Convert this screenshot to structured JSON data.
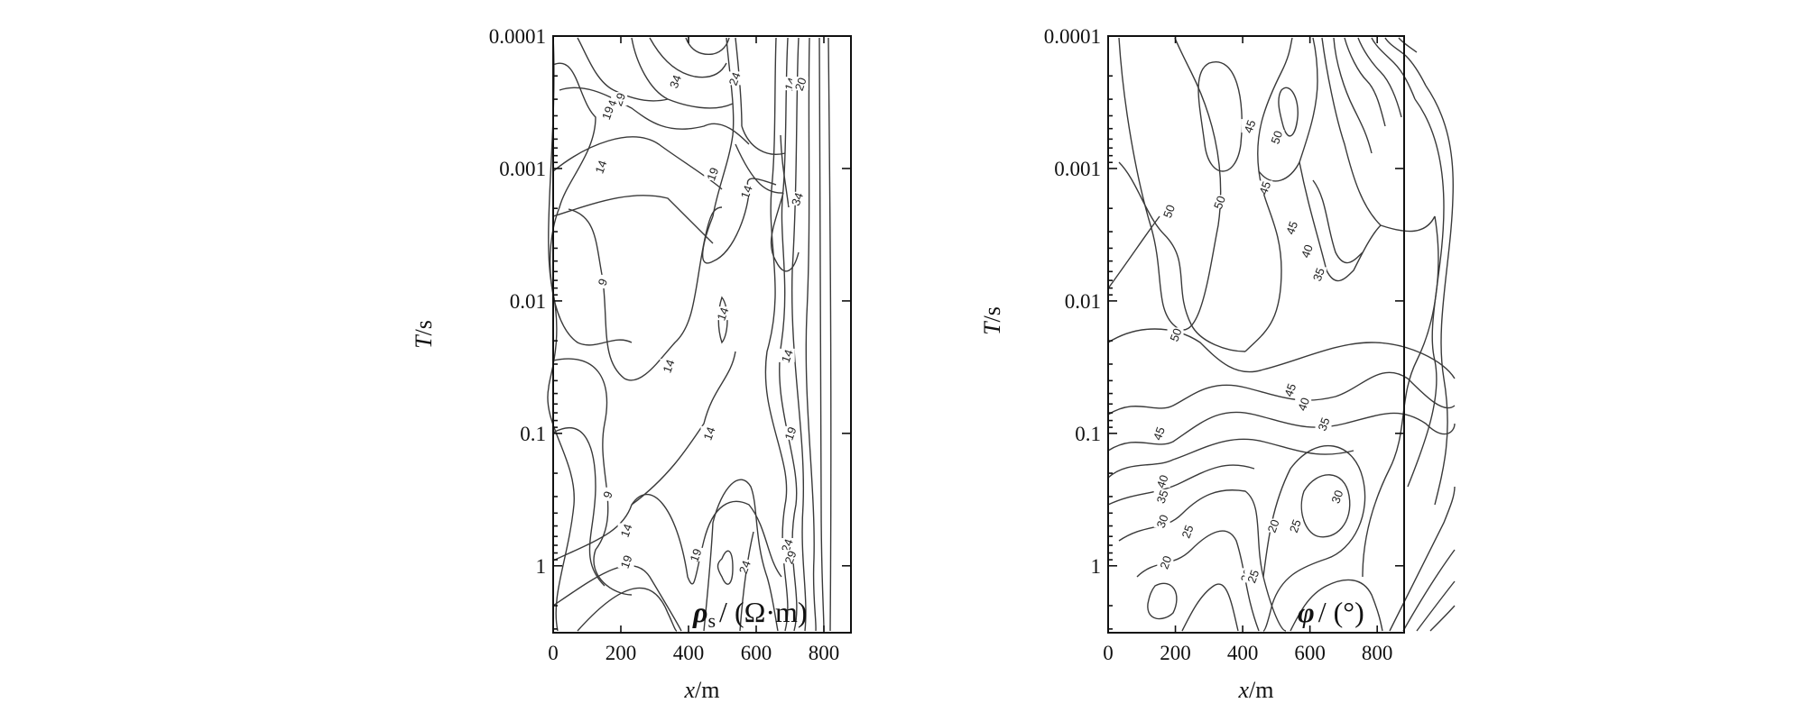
{
  "chart_data": [
    {
      "type": "contour",
      "panel": "left",
      "quantity": "apparent resistivity",
      "unit_label": {
        "symbol": "ρ",
        "sub": "s",
        "rest": "/ (Ω·m)"
      },
      "xlabel": {
        "var": "x",
        "rest": "/m"
      },
      "ylabel": {
        "var": "T",
        "rest": "/s"
      },
      "x_ticks": [
        "0",
        "200",
        "400",
        "600",
        "800"
      ],
      "x_tick_values": [
        0,
        200,
        400,
        600,
        800
      ],
      "xlim": [
        0,
        880
      ],
      "y_scale": "log",
      "y_inverted": true,
      "y_ticks": [
        "0.0001",
        "0.001",
        "0.01",
        "0.1",
        "1"
      ],
      "y_tick_values": [
        0.0001,
        0.001,
        0.01,
        0.1,
        1
      ],
      "ylim": [
        0.0001,
        3.2
      ],
      "contour_labels": [
        {
          "text": "34",
          "x": 360,
          "T": 0.00022
        },
        {
          "text": "29",
          "x": 195,
          "T": 0.0003
        },
        {
          "text": "24",
          "x": 170,
          "T": 0.00034
        },
        {
          "text": "19",
          "x": 160,
          "T": 0.00038
        },
        {
          "text": "24",
          "x": 535,
          "T": 0.00021
        },
        {
          "text": "14",
          "x": 700,
          "T": 0.00023
        },
        {
          "text": "20",
          "x": 730,
          "T": 0.00023
        },
        {
          "text": "14",
          "x": 140,
          "T": 0.00097
        },
        {
          "text": "19",
          "x": 470,
          "T": 0.0011
        },
        {
          "text": "14",
          "x": 570,
          "T": 0.0015
        },
        {
          "text": "34",
          "x": 720,
          "T": 0.0017
        },
        {
          "text": "9",
          "x": 145,
          "T": 0.0072
        },
        {
          "text": "14",
          "x": 500,
          "T": 0.0125
        },
        {
          "text": "14",
          "x": 340,
          "T": 0.031
        },
        {
          "text": "14",
          "x": 690,
          "T": 0.026
        },
        {
          "text": "14",
          "x": 460,
          "T": 0.1
        },
        {
          "text": "19",
          "x": 700,
          "T": 0.1
        },
        {
          "text": "9",
          "x": 160,
          "T": 0.29
        },
        {
          "text": "14",
          "x": 215,
          "T": 0.54
        },
        {
          "text": "24",
          "x": 690,
          "T": 0.7
        },
        {
          "text": "19",
          "x": 420,
          "T": 0.83
        },
        {
          "text": "29",
          "x": 700,
          "T": 0.86
        },
        {
          "text": "19",
          "x": 215,
          "T": 0.93
        },
        {
          "text": "24",
          "x": 565,
          "T": 1.02
        }
      ]
    },
    {
      "type": "contour",
      "panel": "right",
      "quantity": "impedance phase",
      "unit_label": {
        "symbol": "φ",
        "sub": "",
        "rest": "/ (°)"
      },
      "xlabel": {
        "var": "x",
        "rest": "/m"
      },
      "ylabel": {
        "var": "T",
        "rest": "/s"
      },
      "x_ticks": [
        "0",
        "200",
        "400",
        "600",
        "800"
      ],
      "x_tick_values": [
        0,
        200,
        400,
        600,
        800
      ],
      "xlim": [
        0,
        880
      ],
      "y_scale": "log",
      "y_inverted": true,
      "y_ticks": [
        "0.0001",
        "0.001",
        "0.01",
        "0.1",
        "1"
      ],
      "y_tick_values": [
        0.0001,
        0.001,
        0.01,
        0.1,
        1
      ],
      "ylim": [
        0.0001,
        3.2
      ],
      "contour_labels": [
        {
          "text": "45",
          "x": 420,
          "T": 0.00048
        },
        {
          "text": "50",
          "x": 500,
          "T": 0.00058
        },
        {
          "text": "45",
          "x": 465,
          "T": 0.0014
        },
        {
          "text": "50",
          "x": 330,
          "T": 0.0018
        },
        {
          "text": "50",
          "x": 180,
          "T": 0.0021
        },
        {
          "text": "45",
          "x": 545,
          "T": 0.0028
        },
        {
          "text": "40",
          "x": 590,
          "T": 0.0042
        },
        {
          "text": "35",
          "x": 625,
          "T": 0.0063
        },
        {
          "text": "50",
          "x": 200,
          "T": 0.018
        },
        {
          "text": "45",
          "x": 540,
          "T": 0.047
        },
        {
          "text": "40",
          "x": 580,
          "T": 0.06
        },
        {
          "text": "35",
          "x": 640,
          "T": 0.085
        },
        {
          "text": "45",
          "x": 150,
          "T": 0.1
        },
        {
          "text": "40",
          "x": 160,
          "T": 0.23
        },
        {
          "text": "35",
          "x": 160,
          "T": 0.3
        },
        {
          "text": "30",
          "x": 160,
          "T": 0.46
        },
        {
          "text": "30",
          "x": 680,
          "T": 0.3
        },
        {
          "text": "20",
          "x": 490,
          "T": 0.5
        },
        {
          "text": "25",
          "x": 555,
          "T": 0.5
        },
        {
          "text": "25",
          "x": 235,
          "T": 0.55
        },
        {
          "text": "20",
          "x": 170,
          "T": 0.94
        },
        {
          "text": "20",
          "x": 410,
          "T": 1.18
        },
        {
          "text": "25",
          "x": 430,
          "T": 1.2
        }
      ]
    }
  ]
}
